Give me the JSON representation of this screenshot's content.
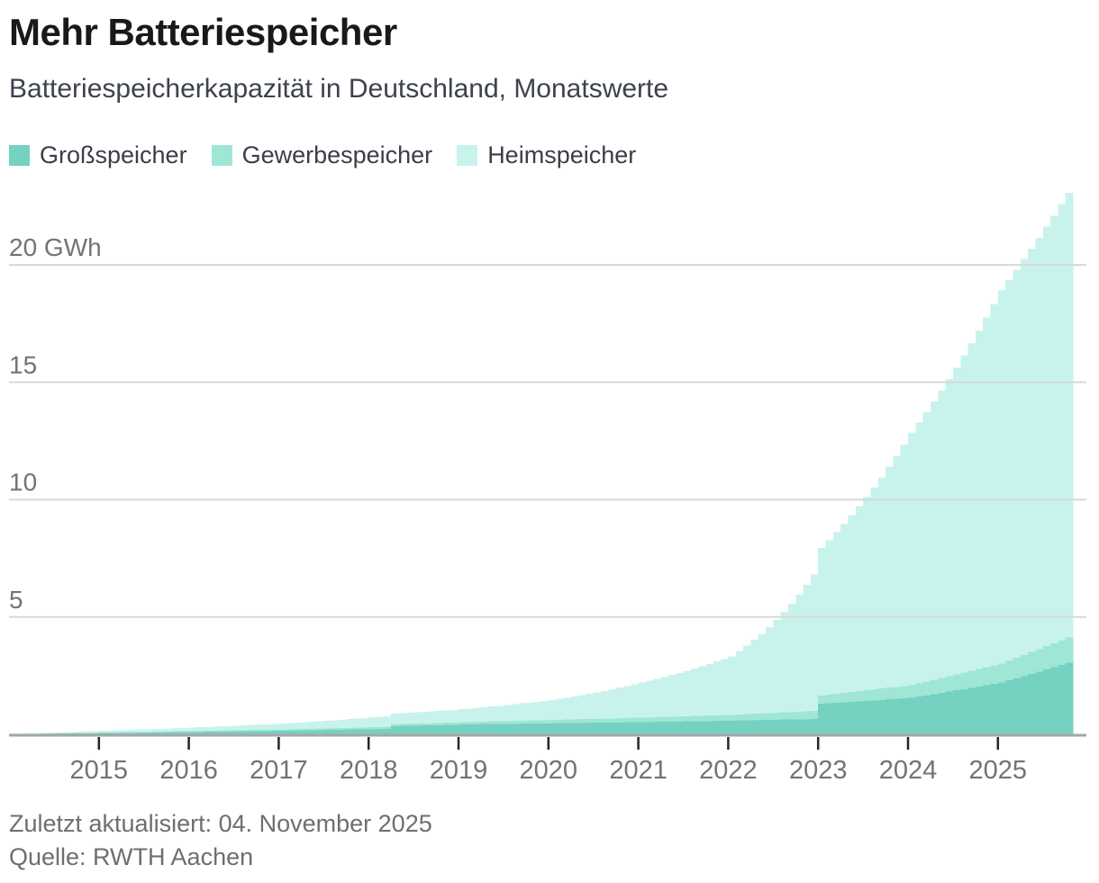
{
  "header": {
    "title": "Mehr Batteriespeicher",
    "subtitle": "Batteriespeicherkapazität in Deutschland, Monatswerte"
  },
  "footer": {
    "updated": "Zuletzt aktualisiert: 04. November 2025",
    "source": "Quelle: RWTH Aachen"
  },
  "colors": {
    "grid": "#d9d9d9",
    "axis_line": "#a6a6a6",
    "tick": "#262626",
    "axis_label": "#737373"
  },
  "chart_data": {
    "type": "area",
    "stacked": true,
    "step_style": "monthly-bars",
    "unit": "GWh",
    "x_frequency": "monthly",
    "x_range": [
      "2014-01",
      "2025-10"
    ],
    "ylim": [
      0,
      23.3
    ],
    "grid": true,
    "legend_position": "top",
    "y_ticks": [
      {
        "value": 5,
        "label": "5"
      },
      {
        "value": 10,
        "label": "10"
      },
      {
        "value": 15,
        "label": "15"
      },
      {
        "value": 20,
        "label": "20 GWh"
      }
    ],
    "x_ticks": [
      {
        "label": "2015",
        "month_index": 12
      },
      {
        "label": "2016",
        "month_index": 24
      },
      {
        "label": "2017",
        "month_index": 36
      },
      {
        "label": "2018",
        "month_index": 48
      },
      {
        "label": "2019",
        "month_index": 60
      },
      {
        "label": "2020",
        "month_index": 72
      },
      {
        "label": "2021",
        "month_index": 84
      },
      {
        "label": "2022",
        "month_index": 96
      },
      {
        "label": "2023",
        "month_index": 108
      },
      {
        "label": "2024",
        "month_index": 120
      },
      {
        "label": "2025",
        "month_index": 132
      }
    ],
    "series": [
      {
        "name": "Großspeicher",
        "color": "#75d1c0",
        "values": [
          0.01,
          0.013,
          0.017,
          0.02,
          0.023,
          0.027,
          0.03,
          0.033,
          0.037,
          0.04,
          0.043,
          0.047,
          0.05,
          0.054,
          0.058,
          0.063,
          0.067,
          0.071,
          0.075,
          0.079,
          0.083,
          0.088,
          0.092,
          0.096,
          0.1,
          0.104,
          0.108,
          0.113,
          0.117,
          0.121,
          0.125,
          0.129,
          0.133,
          0.138,
          0.142,
          0.146,
          0.15,
          0.156,
          0.162,
          0.168,
          0.173,
          0.179,
          0.185,
          0.191,
          0.197,
          0.203,
          0.208,
          0.214,
          0.22,
          0.23,
          0.24,
          0.35,
          0.36,
          0.366,
          0.372,
          0.378,
          0.384,
          0.39,
          0.4,
          0.41,
          0.42,
          0.424,
          0.428,
          0.433,
          0.437,
          0.441,
          0.445,
          0.449,
          0.453,
          0.458,
          0.462,
          0.466,
          0.47,
          0.474,
          0.478,
          0.483,
          0.487,
          0.491,
          0.495,
          0.499,
          0.503,
          0.508,
          0.512,
          0.516,
          0.52,
          0.525,
          0.53,
          0.535,
          0.54,
          0.545,
          0.55,
          0.555,
          0.56,
          0.565,
          0.57,
          0.575,
          0.58,
          0.586,
          0.593,
          0.599,
          0.605,
          0.612,
          0.618,
          0.624,
          0.631,
          0.637,
          0.643,
          0.65,
          1.3,
          1.321,
          1.342,
          1.363,
          1.383,
          1.404,
          1.425,
          1.446,
          1.467,
          1.488,
          1.508,
          1.529,
          1.55,
          1.604,
          1.658,
          1.713,
          1.767,
          1.821,
          1.875,
          1.929,
          1.983,
          2.038,
          2.092,
          2.146,
          2.2,
          2.294,
          2.389,
          2.483,
          2.578,
          2.672,
          2.767,
          2.861,
          2.956,
          3.05
        ]
      },
      {
        "name": "Gewerbespeicher",
        "color": "#9fe6d7",
        "values": [
          0.005,
          0.006,
          0.008,
          0.009,
          0.01,
          0.011,
          0.013,
          0.014,
          0.015,
          0.016,
          0.018,
          0.019,
          0.02,
          0.022,
          0.023,
          0.025,
          0.027,
          0.028,
          0.03,
          0.032,
          0.033,
          0.035,
          0.037,
          0.038,
          0.04,
          0.042,
          0.043,
          0.045,
          0.047,
          0.048,
          0.05,
          0.052,
          0.053,
          0.055,
          0.057,
          0.058,
          0.06,
          0.062,
          0.063,
          0.065,
          0.067,
          0.068,
          0.07,
          0.072,
          0.073,
          0.075,
          0.077,
          0.078,
          0.08,
          0.082,
          0.083,
          0.085,
          0.087,
          0.088,
          0.09,
          0.092,
          0.093,
          0.095,
          0.097,
          0.098,
          0.1,
          0.103,
          0.107,
          0.11,
          0.113,
          0.117,
          0.12,
          0.123,
          0.127,
          0.13,
          0.133,
          0.137,
          0.14,
          0.144,
          0.148,
          0.153,
          0.157,
          0.161,
          0.165,
          0.169,
          0.173,
          0.178,
          0.182,
          0.186,
          0.19,
          0.195,
          0.2,
          0.205,
          0.21,
          0.215,
          0.22,
          0.225,
          0.23,
          0.235,
          0.24,
          0.245,
          0.25,
          0.258,
          0.267,
          0.275,
          0.283,
          0.292,
          0.3,
          0.308,
          0.317,
          0.325,
          0.333,
          0.342,
          0.35,
          0.367,
          0.383,
          0.4,
          0.417,
          0.433,
          0.45,
          0.467,
          0.483,
          0.5,
          0.517,
          0.533,
          0.55,
          0.573,
          0.595,
          0.618,
          0.64,
          0.663,
          0.685,
          0.708,
          0.73,
          0.753,
          0.775,
          0.798,
          0.82,
          0.848,
          0.876,
          0.903,
          0.931,
          0.959,
          0.987,
          1.014,
          1.042,
          1.07
        ]
      },
      {
        "name": "Heimspeicher",
        "color": "#c8f3ec",
        "values": [
          0.02,
          0.022,
          0.025,
          0.028,
          0.032,
          0.036,
          0.04,
          0.045,
          0.05,
          0.057,
          0.064,
          0.071,
          0.08,
          0.084,
          0.089,
          0.094,
          0.099,
          0.104,
          0.109,
          0.115,
          0.121,
          0.128,
          0.135,
          0.142,
          0.15,
          0.157,
          0.163,
          0.17,
          0.178,
          0.186,
          0.194,
          0.202,
          0.211,
          0.22,
          0.23,
          0.24,
          0.25,
          0.261,
          0.273,
          0.285,
          0.297,
          0.31,
          0.324,
          0.338,
          0.353,
          0.369,
          0.385,
          0.402,
          0.42,
          0.43,
          0.439,
          0.449,
          0.459,
          0.47,
          0.481,
          0.491,
          0.503,
          0.514,
          0.526,
          0.538,
          0.55,
          0.57,
          0.591,
          0.613,
          0.636,
          0.659,
          0.684,
          0.709,
          0.735,
          0.762,
          0.79,
          0.82,
          0.85,
          0.891,
          0.934,
          0.98,
          1.027,
          1.077,
          1.129,
          1.184,
          1.241,
          1.302,
          1.365,
          1.431,
          1.5,
          1.565,
          1.633,
          1.704,
          1.778,
          1.856,
          1.936,
          2.02,
          2.108,
          2.2,
          2.295,
          2.395,
          2.5,
          2.7,
          2.916,
          3.149,
          3.401,
          3.673,
          3.967,
          4.284,
          4.627,
          4.997,
          5.397,
          5.829,
          6.3,
          6.587,
          6.888,
          7.202,
          7.53,
          7.873,
          8.232,
          8.608,
          9.0,
          9.411,
          9.84,
          10.289,
          10.75,
          11.106,
          11.473,
          11.853,
          12.245,
          12.65,
          13.069,
          13.501,
          13.948,
          14.41,
          14.887,
          15.379,
          15.9,
          16.213,
          16.533,
          16.858,
          17.19,
          17.529,
          17.874,
          18.226,
          18.585,
          18.95
        ]
      }
    ]
  }
}
